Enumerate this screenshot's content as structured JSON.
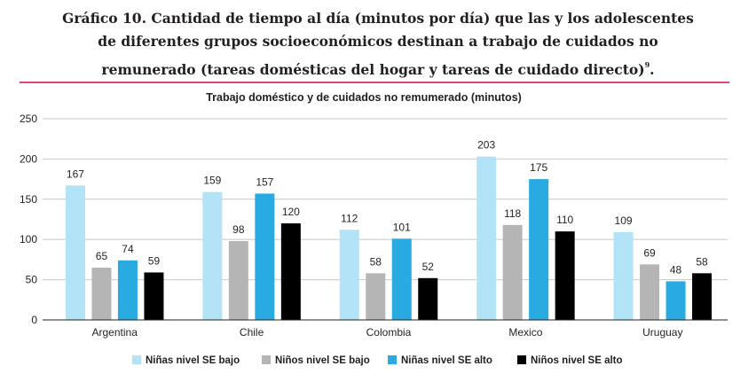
{
  "title": {
    "line1": "Gráfico 10. Cantidad de tiempo al día (minutos por día) que las y los adolescentes",
    "line2": "de diferentes grupos socioeconómicos destinan a trabajo de cuidados no",
    "line3": "remunerado (tareas domésticas del hogar y tareas de cuidado directo)",
    "footnote_mark": "9",
    "end_punct": "."
  },
  "chart_data": {
    "type": "bar",
    "title": "Trabajo doméstico y de cuidados no remumerado (minutos)",
    "categories": [
      "Argentina",
      "Chile",
      "Colombia",
      "Mexico",
      "Uruguay"
    ],
    "series": [
      {
        "name": "Niñas nivel SE bajo",
        "color": "#b3e3f7",
        "values": [
          167,
          159,
          112,
          203,
          109
        ]
      },
      {
        "name": "Niños nivel SE bajo",
        "color": "#b5b5b5",
        "values": [
          65,
          98,
          58,
          118,
          69
        ]
      },
      {
        "name": "Niñas nivel SE alto",
        "color": "#29abe2",
        "values": [
          74,
          157,
          101,
          175,
          48
        ]
      },
      {
        "name": "Niños nivel SE alto",
        "color": "#000000",
        "values": [
          59,
          120,
          52,
          110,
          58
        ]
      }
    ],
    "yticks": [
      0,
      50,
      100,
      150,
      200,
      250
    ],
    "ylim": [
      0,
      250
    ],
    "grid": true,
    "legend": "bottom"
  },
  "colors": {
    "accent_rule": "#e0457b",
    "gridline": "#c8c8c8"
  }
}
